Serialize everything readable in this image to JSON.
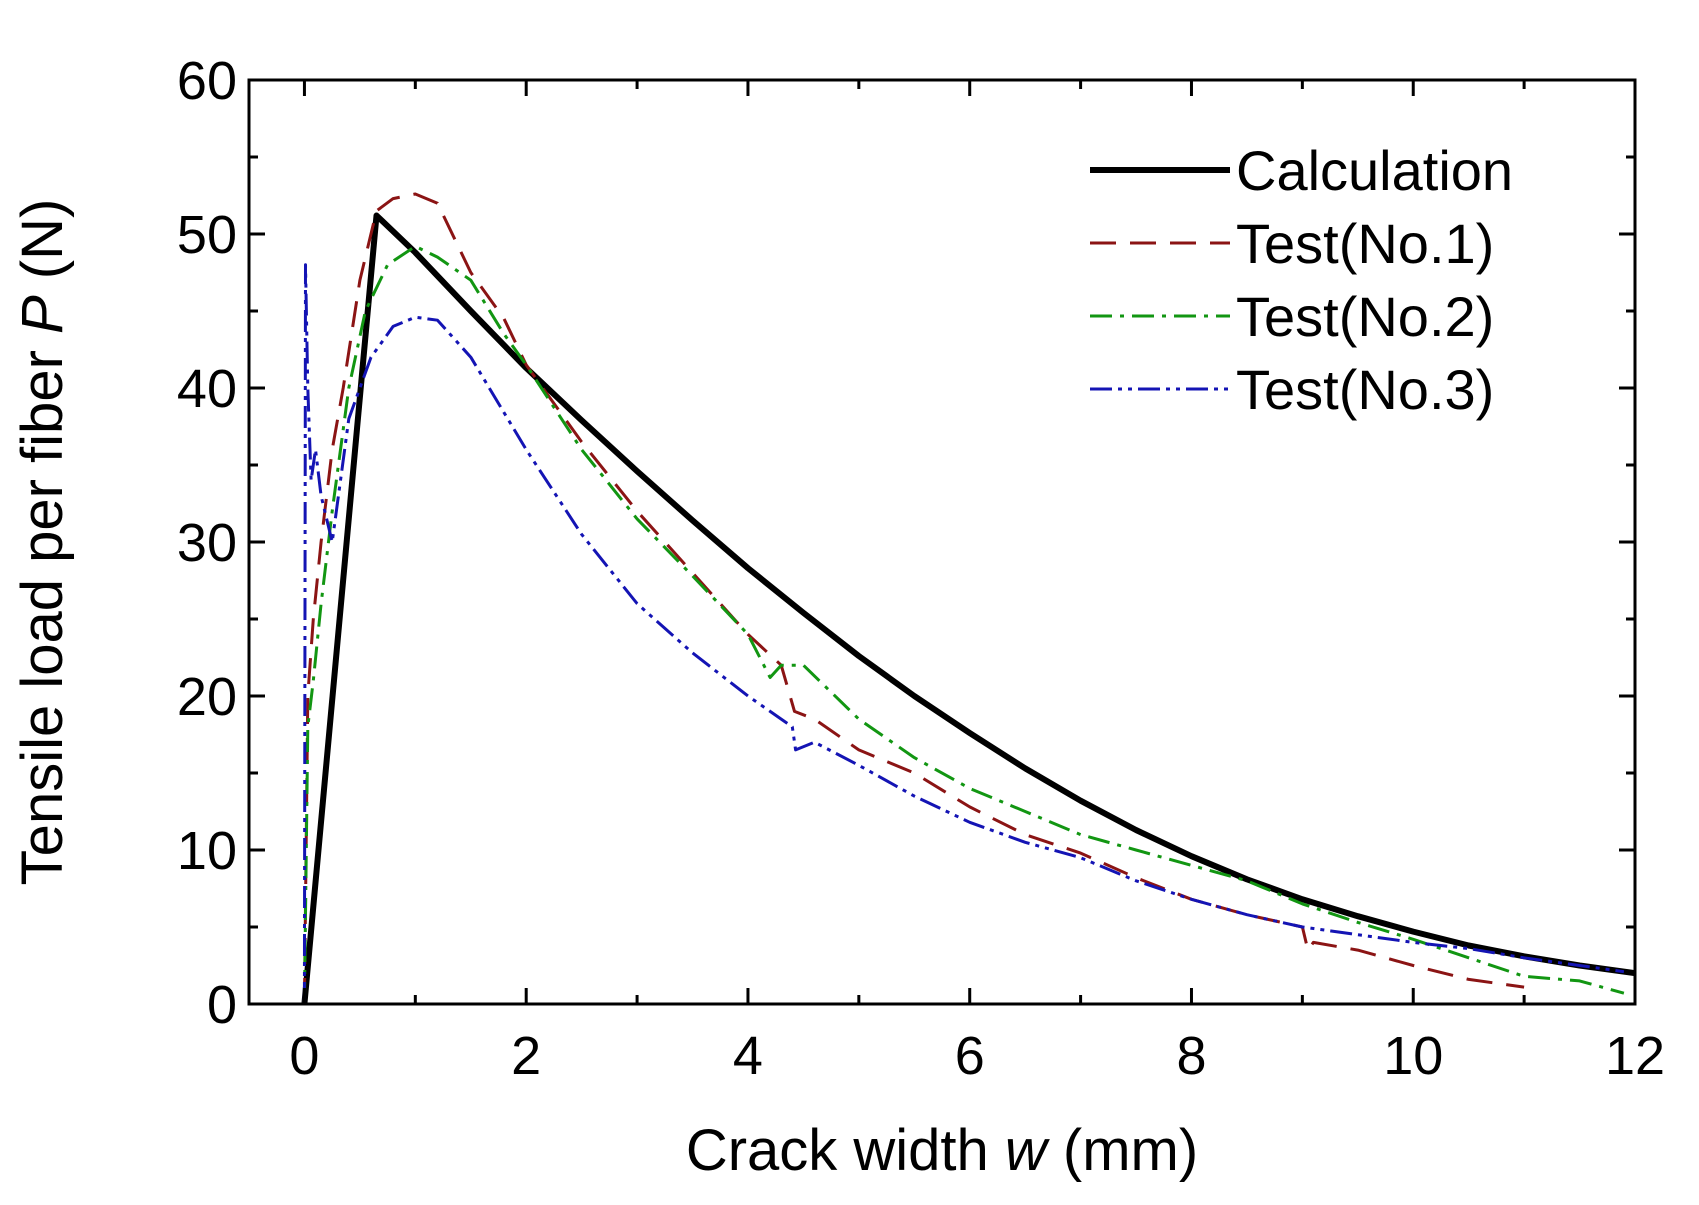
{
  "chart_data": {
    "type": "line",
    "title": "",
    "xlabel": {
      "prefix": "Crack width ",
      "var": "w",
      "suffix": " (mm)"
    },
    "ylabel": {
      "prefix": "Tensile load per fiber ",
      "var": "P",
      "suffix": " (N)"
    },
    "xlim": [
      -0.5,
      12
    ],
    "ylim": [
      0,
      60
    ],
    "xticks": [
      0,
      2,
      4,
      6,
      8,
      10,
      12
    ],
    "xtick_labels": [
      "0",
      "2",
      "4",
      "6",
      "8",
      "10",
      "12"
    ],
    "yticks": [
      0,
      10,
      20,
      30,
      40,
      50,
      60
    ],
    "ytick_labels": [
      "0",
      "10",
      "20",
      "30",
      "40",
      "50",
      "60"
    ],
    "grid": false,
    "legend_position": "top-right",
    "series": [
      {
        "name": "Calculation",
        "color": "#000000",
        "style": "solid",
        "x": [
          0,
          0.65,
          1,
          1.5,
          2,
          2.5,
          3,
          3.5,
          4,
          4.5,
          5,
          5.5,
          6,
          6.5,
          7,
          7.5,
          8,
          8.5,
          9,
          9.5,
          10,
          10.5,
          11,
          11.5,
          12
        ],
        "y": [
          0,
          51.2,
          48.8,
          45.0,
          41.3,
          37.9,
          34.6,
          31.4,
          28.3,
          25.4,
          22.6,
          20.0,
          17.6,
          15.3,
          13.2,
          11.3,
          9.6,
          8.1,
          6.8,
          5.7,
          4.7,
          3.8,
          3.1,
          2.5,
          2.0
        ]
      },
      {
        "name": "Test(No.1)",
        "color": "#8B1414",
        "style": "dash",
        "x": [
          0,
          0.03,
          0.08,
          0.15,
          0.25,
          0.35,
          0.5,
          0.65,
          0.8,
          1.0,
          1.2,
          1.5,
          1.8,
          2.0,
          2.5,
          3.0,
          3.5,
          4.0,
          4.3,
          4.42,
          4.6,
          5.0,
          5.5,
          6.0,
          6.5,
          7.0,
          7.5,
          8.0,
          8.5,
          9.0,
          9.05,
          9.1,
          9.5,
          10.0,
          10.5,
          11.0
        ],
        "y": [
          0,
          20,
          25,
          30,
          36,
          40,
          47,
          51.5,
          52.3,
          52.6,
          52.0,
          47.5,
          44.5,
          41.5,
          36.5,
          32.0,
          28.0,
          24.0,
          22.0,
          19.0,
          18.5,
          16.5,
          15.0,
          12.8,
          11.0,
          9.8,
          8.2,
          6.8,
          5.8,
          5.0,
          3.5,
          4.0,
          3.5,
          2.5,
          1.6,
          1.1
        ]
      },
      {
        "name": "Test(No.2)",
        "color": "#129612",
        "style": "dashdot",
        "x": [
          0,
          0.03,
          0.08,
          0.15,
          0.25,
          0.4,
          0.55,
          0.75,
          1.0,
          1.2,
          1.5,
          1.8,
          2.0,
          2.5,
          3.0,
          3.5,
          4.0,
          4.2,
          4.3,
          4.5,
          5.0,
          5.5,
          6.0,
          6.5,
          7.0,
          7.5,
          8.0,
          8.5,
          9.0,
          9.5,
          10.0,
          10.5,
          11.0,
          11.5,
          11.9
        ],
        "y": [
          0,
          18,
          21,
          26,
          32,
          40,
          45,
          48,
          49.2,
          48.5,
          47.0,
          43.5,
          41.5,
          36.0,
          31.5,
          27.8,
          24.0,
          21.2,
          22.0,
          22.0,
          18.5,
          16.0,
          14.0,
          12.5,
          11.0,
          10.0,
          9.0,
          8.0,
          6.5,
          5.3,
          4.2,
          3.0,
          1.8,
          1.5,
          0.7
        ]
      },
      {
        "name": "Test(No.3)",
        "color": "#1414B4",
        "style": "dashdotdot",
        "x": [
          0,
          0.01,
          0.03,
          0.06,
          0.1,
          0.15,
          0.25,
          0.4,
          0.6,
          0.8,
          1.0,
          1.2,
          1.5,
          2.0,
          2.5,
          3.0,
          3.5,
          4.0,
          4.3,
          4.4,
          4.43,
          4.6,
          5.0,
          5.5,
          6.0,
          6.5,
          7.0,
          7.5,
          8.0,
          8.5,
          9.0,
          9.5,
          10.0,
          10.5,
          11.0,
          11.5,
          11.9
        ],
        "y": [
          0,
          48,
          40,
          34,
          36,
          33,
          30,
          38,
          42,
          44,
          44.6,
          44.4,
          42.0,
          36.0,
          30.5,
          26.0,
          22.8,
          20.0,
          18.5,
          18.0,
          16.5,
          17.0,
          15.5,
          13.5,
          11.8,
          10.5,
          9.5,
          8.0,
          6.8,
          5.8,
          5.0,
          4.5,
          4.0,
          3.6,
          3.0,
          2.5,
          2.1
        ]
      }
    ]
  }
}
